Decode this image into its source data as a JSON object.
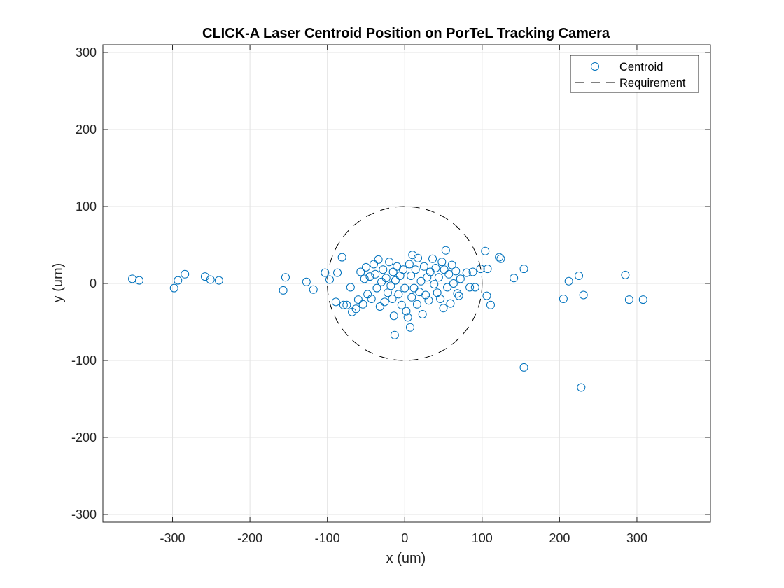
{
  "chart_data": {
    "type": "scatter",
    "title": "CLICK-A Laser Centroid Position on PorTeL Tracking Camera",
    "xlabel": "x (um)",
    "ylabel": "y (um)",
    "xlim": [
      -390,
      395
    ],
    "ylim": [
      -310,
      310
    ],
    "xticks": [
      -300,
      -200,
      -100,
      0,
      100,
      200,
      300
    ],
    "yticks": [
      -300,
      -200,
      -100,
      0,
      100,
      200,
      300
    ],
    "xtick_labels": [
      "-300",
      "-200",
      "-100",
      "0",
      "100",
      "200",
      "300"
    ],
    "ytick_labels": [
      "-300",
      "-200",
      "-100",
      "0",
      "100",
      "200",
      "300"
    ],
    "grid": true,
    "legend_position": "top-right",
    "colors": {
      "marker": "#0072BD",
      "requirement": "#000000",
      "grid": "#e3e3e3",
      "axis": "#262626"
    },
    "series": [
      {
        "name": "Centroid",
        "marker": "open-circle",
        "points": [
          [
            -352,
            6
          ],
          [
            -343,
            4
          ],
          [
            -298,
            -6
          ],
          [
            -293,
            4
          ],
          [
            -284,
            12
          ],
          [
            -258,
            9
          ],
          [
            -251,
            5
          ],
          [
            -240,
            4
          ],
          [
            -157,
            -9
          ],
          [
            -154,
            8
          ],
          [
            -127,
            2
          ],
          [
            -118,
            -8
          ],
          [
            -103,
            14
          ],
          [
            -97,
            5
          ],
          [
            -89,
            -24
          ],
          [
            -87,
            14
          ],
          [
            -81,
            34
          ],
          [
            -79,
            -28
          ],
          [
            -75,
            -28
          ],
          [
            -70,
            -5
          ],
          [
            -68,
            -37
          ],
          [
            -63,
            -33
          ],
          [
            -60,
            -21
          ],
          [
            -57,
            15
          ],
          [
            -54,
            -27
          ],
          [
            -52,
            6
          ],
          [
            -50,
            21
          ],
          [
            -48,
            -14
          ],
          [
            -45,
            9
          ],
          [
            -43,
            -20
          ],
          [
            -40,
            25
          ],
          [
            -38,
            12
          ],
          [
            -36,
            -6
          ],
          [
            -34,
            31
          ],
          [
            -32,
            -30
          ],
          [
            -30,
            2
          ],
          [
            -28,
            18
          ],
          [
            -26,
            -24
          ],
          [
            -24,
            7
          ],
          [
            -22,
            -12
          ],
          [
            -20,
            28
          ],
          [
            -18,
            -3
          ],
          [
            -16,
            -20
          ],
          [
            -15,
            15
          ],
          [
            -14,
            -42
          ],
          [
            -13,
            -67
          ],
          [
            -12,
            4
          ],
          [
            -10,
            22
          ],
          [
            -8,
            -14
          ],
          [
            -6,
            10
          ],
          [
            -4,
            -28
          ],
          [
            -2,
            18
          ],
          [
            0,
            -6
          ],
          [
            2,
            -36
          ],
          [
            4,
            -44
          ],
          [
            6,
            25
          ],
          [
            7,
            -57
          ],
          [
            8,
            10
          ],
          [
            9,
            -18
          ],
          [
            10,
            37
          ],
          [
            12,
            -6
          ],
          [
            14,
            18
          ],
          [
            16,
            -27
          ],
          [
            17,
            33
          ],
          [
            19,
            -11
          ],
          [
            21,
            3
          ],
          [
            23,
            -40
          ],
          [
            25,
            22
          ],
          [
            27,
            -15
          ],
          [
            29,
            8
          ],
          [
            31,
            -22
          ],
          [
            33,
            15
          ],
          [
            36,
            32
          ],
          [
            38,
            -1
          ],
          [
            40,
            20
          ],
          [
            42,
            -12
          ],
          [
            44,
            8
          ],
          [
            46,
            -20
          ],
          [
            48,
            28
          ],
          [
            50,
            -32
          ],
          [
            51,
            18
          ],
          [
            53,
            43
          ],
          [
            55,
            -5
          ],
          [
            57,
            12
          ],
          [
            59,
            -26
          ],
          [
            61,
            24
          ],
          [
            63,
            0
          ],
          [
            66,
            16
          ],
          [
            68,
            -13
          ],
          [
            70,
            -16
          ],
          [
            72,
            6
          ],
          [
            80,
            14
          ],
          [
            84,
            -5
          ],
          [
            88,
            15
          ],
          [
            91,
            -5
          ],
          [
            98,
            19
          ],
          [
            104,
            42
          ],
          [
            106,
            -16
          ],
          [
            107,
            19
          ],
          [
            111,
            -28
          ],
          [
            122,
            34
          ],
          [
            124,
            32
          ],
          [
            141,
            7
          ],
          [
            154,
            19
          ],
          [
            154,
            -109
          ],
          [
            205,
            -20
          ],
          [
            212,
            3
          ],
          [
            225,
            10
          ],
          [
            228,
            -135
          ],
          [
            231,
            -15
          ],
          [
            285,
            11
          ],
          [
            290,
            -21
          ],
          [
            308,
            -21
          ]
        ]
      },
      {
        "name": "Requirement",
        "shape": "circle",
        "center": [
          0,
          0
        ],
        "radius": 100,
        "line_style": "dashed"
      }
    ]
  }
}
